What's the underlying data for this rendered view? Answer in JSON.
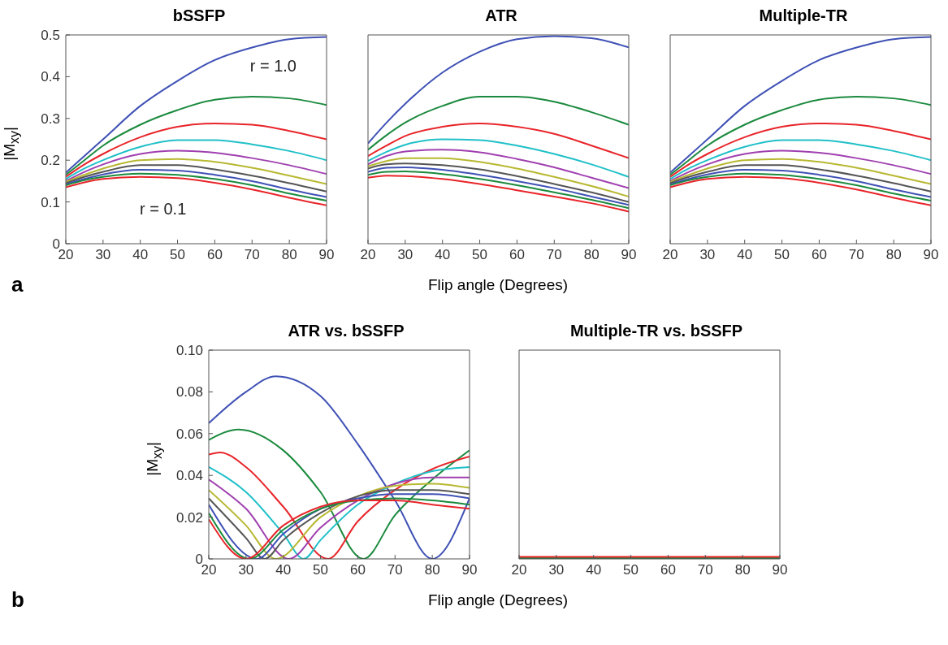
{
  "chart_data": [
    {
      "type": "line",
      "title": "bSSFP",
      "ylabel": "|M$_{xy}$|",
      "annotations": [
        "a",
        "r = 1.0",
        "r = 0.1"
      ],
      "x": [
        20,
        25,
        30,
        40,
        50,
        60,
        70,
        80,
        90
      ],
      "xlim": [
        20,
        90
      ],
      "xticks": [
        20,
        30,
        40,
        50,
        60,
        70,
        80,
        90
      ],
      "ylim": [
        0,
        0.5
      ],
      "yticks": [
        0,
        0.1,
        0.2,
        0.3,
        0.4,
        0.5
      ],
      "series": [
        {
          "color": "#3f51b5",
          "values": [
            0.17,
            0.21,
            0.25,
            0.33,
            0.39,
            0.44,
            0.47,
            0.49,
            0.495
          ]
        },
        {
          "color": "#1b8a3e",
          "values": [
            0.165,
            0.2,
            0.235,
            0.285,
            0.32,
            0.345,
            0.352,
            0.348,
            0.332
          ]
        },
        {
          "color": "#e8252a",
          "values": [
            0.16,
            0.19,
            0.215,
            0.255,
            0.28,
            0.288,
            0.285,
            0.27,
            0.25
          ]
        },
        {
          "color": "#20c0c8",
          "values": [
            0.155,
            0.18,
            0.2,
            0.232,
            0.248,
            0.248,
            0.238,
            0.222,
            0.2
          ]
        },
        {
          "color": "#a040b0",
          "values": [
            0.15,
            0.172,
            0.19,
            0.215,
            0.223,
            0.218,
            0.205,
            0.188,
            0.167
          ]
        },
        {
          "color": "#b8b832",
          "values": [
            0.148,
            0.165,
            0.18,
            0.2,
            0.203,
            0.196,
            0.182,
            0.163,
            0.143
          ]
        },
        {
          "color": "#555555",
          "values": [
            0.145,
            0.16,
            0.172,
            0.188,
            0.188,
            0.178,
            0.163,
            0.145,
            0.125
          ]
        },
        {
          "color": "#3f51b5",
          "values": [
            0.142,
            0.155,
            0.166,
            0.177,
            0.175,
            0.165,
            0.15,
            0.13,
            0.112
          ]
        },
        {
          "color": "#1b8a3e",
          "values": [
            0.14,
            0.152,
            0.16,
            0.168,
            0.165,
            0.155,
            0.14,
            0.12,
            0.103
          ]
        },
        {
          "color": "#e8252a",
          "values": [
            0.135,
            0.147,
            0.155,
            0.16,
            0.157,
            0.146,
            0.13,
            0.11,
            0.092
          ]
        }
      ]
    },
    {
      "type": "line",
      "title": "ATR",
      "xlabel": "Flip angle (Degrees)",
      "tick_labels": "x",
      "x": [
        20,
        25,
        30,
        40,
        50,
        60,
        70,
        80,
        90
      ],
      "xlim": [
        20,
        90
      ],
      "xticks": [
        20,
        30,
        40,
        50,
        60,
        70,
        80,
        90
      ],
      "ylim": [
        0,
        0.5
      ],
      "yticks": [
        0,
        0.1,
        0.2,
        0.3,
        0.4,
        0.5
      ],
      "series": [
        {
          "color": "#3f51b5",
          "values": [
            0.24,
            0.29,
            0.335,
            0.41,
            0.46,
            0.49,
            0.497,
            0.492,
            0.47
          ]
        },
        {
          "color": "#1b8a3e",
          "values": [
            0.225,
            0.26,
            0.29,
            0.33,
            0.352,
            0.352,
            0.34,
            0.315,
            0.285
          ]
        },
        {
          "color": "#e8252a",
          "values": [
            0.21,
            0.235,
            0.258,
            0.28,
            0.288,
            0.28,
            0.263,
            0.235,
            0.205
          ]
        },
        {
          "color": "#20c0c8",
          "values": [
            0.198,
            0.22,
            0.237,
            0.25,
            0.248,
            0.235,
            0.215,
            0.19,
            0.16
          ]
        },
        {
          "color": "#a040b0",
          "values": [
            0.19,
            0.21,
            0.221,
            0.225,
            0.219,
            0.203,
            0.183,
            0.158,
            0.133
          ]
        },
        {
          "color": "#b8b832",
          "values": [
            0.185,
            0.198,
            0.205,
            0.205,
            0.196,
            0.18,
            0.16,
            0.138,
            0.113
          ]
        },
        {
          "color": "#555555",
          "values": [
            0.18,
            0.19,
            0.192,
            0.188,
            0.178,
            0.162,
            0.143,
            0.123,
            0.1
          ]
        },
        {
          "color": "#3f51b5",
          "values": [
            0.172,
            0.182,
            0.183,
            0.177,
            0.165,
            0.15,
            0.133,
            0.113,
            0.093
          ]
        },
        {
          "color": "#1b8a3e",
          "values": [
            0.165,
            0.172,
            0.173,
            0.167,
            0.155,
            0.14,
            0.123,
            0.105,
            0.085
          ]
        },
        {
          "color": "#e8252a",
          "values": [
            0.158,
            0.163,
            0.162,
            0.155,
            0.143,
            0.128,
            0.113,
            0.097,
            0.077
          ]
        }
      ]
    },
    {
      "type": "line",
      "title": "Multiple-TR",
      "tick_labels": "x",
      "x": [
        20,
        25,
        30,
        40,
        50,
        60,
        70,
        80,
        90
      ],
      "xlim": [
        20,
        90
      ],
      "xticks": [
        20,
        30,
        40,
        50,
        60,
        70,
        80,
        90
      ],
      "ylim": [
        0,
        0.5
      ],
      "yticks": [
        0,
        0.1,
        0.2,
        0.3,
        0.4,
        0.5
      ],
      "series": [
        {
          "color": "#3f51b5",
          "values": [
            0.17,
            0.21,
            0.25,
            0.33,
            0.39,
            0.44,
            0.47,
            0.49,
            0.495
          ]
        },
        {
          "color": "#1b8a3e",
          "values": [
            0.165,
            0.2,
            0.235,
            0.285,
            0.32,
            0.345,
            0.352,
            0.348,
            0.332
          ]
        },
        {
          "color": "#e8252a",
          "values": [
            0.16,
            0.19,
            0.215,
            0.255,
            0.28,
            0.288,
            0.285,
            0.27,
            0.25
          ]
        },
        {
          "color": "#20c0c8",
          "values": [
            0.155,
            0.18,
            0.2,
            0.232,
            0.248,
            0.248,
            0.238,
            0.222,
            0.2
          ]
        },
        {
          "color": "#a040b0",
          "values": [
            0.15,
            0.172,
            0.19,
            0.215,
            0.223,
            0.218,
            0.205,
            0.188,
            0.167
          ]
        },
        {
          "color": "#b8b832",
          "values": [
            0.148,
            0.165,
            0.18,
            0.2,
            0.203,
            0.196,
            0.182,
            0.163,
            0.143
          ]
        },
        {
          "color": "#555555",
          "values": [
            0.145,
            0.16,
            0.172,
            0.188,
            0.188,
            0.178,
            0.163,
            0.145,
            0.125
          ]
        },
        {
          "color": "#3f51b5",
          "values": [
            0.142,
            0.155,
            0.166,
            0.177,
            0.175,
            0.165,
            0.15,
            0.13,
            0.112
          ]
        },
        {
          "color": "#1b8a3e",
          "values": [
            0.14,
            0.152,
            0.16,
            0.168,
            0.165,
            0.155,
            0.14,
            0.12,
            0.103
          ]
        },
        {
          "color": "#e8252a",
          "values": [
            0.135,
            0.147,
            0.155,
            0.16,
            0.157,
            0.146,
            0.13,
            0.11,
            0.092
          ]
        }
      ]
    },
    {
      "type": "line",
      "title": "ATR vs. bSSFP",
      "ylabel": "|M$_{xy}$|",
      "xlabel": "Flip angle (Degrees)",
      "annotations": [
        "b"
      ],
      "xlim": [
        20,
        90
      ],
      "xticks": [
        20,
        30,
        40,
        50,
        60,
        70,
        80,
        90
      ],
      "ylim": [
        0,
        0.1
      ],
      "yticks": [
        0,
        0.02,
        0.04,
        0.06,
        0.08,
        {
          "value": 0.1,
          "label": "0.10"
        }
      ],
      "series": [
        {
          "color": "#3f51b5",
          "x": [
            20,
            30,
            38,
            50,
            60,
            70,
            80,
            90
          ],
          "values": [
            0.065,
            0.08,
            0.0875,
            0.078,
            0.055,
            0.028,
            0,
            0.029
          ]
        },
        {
          "color": "#1b8a3e",
          "x": [
            20,
            28,
            40,
            50,
            61.5,
            70,
            80,
            90
          ],
          "values": [
            0.057,
            0.062,
            0.052,
            0.032,
            0,
            0.021,
            0.038,
            0.052
          ]
        },
        {
          "color": "#e8252a",
          "x": [
            20,
            23,
            30,
            40,
            52,
            60,
            70,
            80,
            90
          ],
          "values": [
            0.05,
            0.051,
            0.044,
            0.025,
            0,
            0.018,
            0.033,
            0.043,
            0.049
          ]
        },
        {
          "color": "#20c0c8",
          "x": [
            20,
            30,
            40,
            45.5,
            50,
            60,
            70,
            80,
            90
          ],
          "values": [
            0.044,
            0.032,
            0.012,
            0,
            0.009,
            0.026,
            0.036,
            0.042,
            0.044
          ]
        },
        {
          "color": "#a040b0",
          "x": [
            20,
            30,
            41.5,
            50,
            60,
            70,
            80,
            90
          ],
          "values": [
            0.038,
            0.024,
            0,
            0.015,
            0.028,
            0.036,
            0.039,
            0.039
          ]
        },
        {
          "color": "#b8b832",
          "x": [
            20,
            30,
            38,
            50,
            60,
            70,
            80,
            90
          ],
          "values": [
            0.033,
            0.016,
            0,
            0.02,
            0.03,
            0.035,
            0.036,
            0.034
          ]
        },
        {
          "color": "#555555",
          "x": [
            20,
            30,
            35,
            40,
            50,
            60,
            70,
            80,
            90
          ],
          "values": [
            0.029,
            0.01,
            0,
            0.009,
            0.022,
            0.03,
            0.033,
            0.033,
            0.031
          ]
        },
        {
          "color": "#3f51b5",
          "x": [
            20,
            33,
            40,
            50,
            60,
            70,
            80,
            90
          ],
          "values": [
            0.026,
            0,
            0.012,
            0.024,
            0.029,
            0.031,
            0.031,
            0.029
          ]
        },
        {
          "color": "#1b8a3e",
          "x": [
            20,
            31,
            40,
            50,
            60,
            70,
            80,
            90
          ],
          "values": [
            0.022,
            0,
            0.014,
            0.024,
            0.028,
            0.029,
            0.028,
            0.026
          ]
        },
        {
          "color": "#e8252a",
          "x": [
            20,
            30,
            40,
            50,
            60,
            70,
            80,
            90
          ],
          "values": [
            0.019,
            0,
            0.016,
            0.025,
            0.028,
            0.028,
            0.026,
            0.024
          ]
        }
      ]
    },
    {
      "type": "line",
      "title": "Multiple-TR vs. bSSFP",
      "tick_labels": "x",
      "x": [
        20,
        90
      ],
      "xlim": [
        20,
        90
      ],
      "xticks": [
        20,
        30,
        40,
        50,
        60,
        70,
        80,
        90
      ],
      "ylim": [
        0,
        0.1
      ],
      "yticks": [
        0,
        0.02,
        0.04,
        0.06,
        0.08,
        0.1
      ],
      "series": [
        {
          "color": "#1b8a3e",
          "values": [
            0.0004,
            0.0004
          ]
        },
        {
          "color": "#e8252a",
          "values": [
            0.001,
            0.001
          ]
        }
      ]
    }
  ]
}
